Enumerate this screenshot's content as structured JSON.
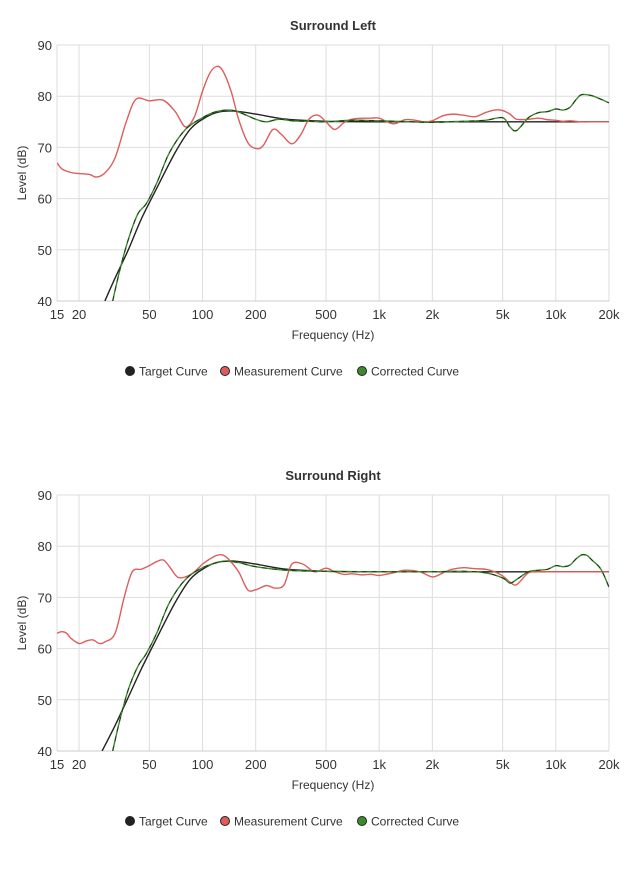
{
  "chart_data": [
    {
      "type": "line",
      "title": "Surround Left",
      "xlabel": "Frequency (Hz)",
      "ylabel": "Level (dB)",
      "xscale": "log",
      "xlim": [
        15,
        20000
      ],
      "ylim": [
        40,
        90
      ],
      "xticks": [
        15,
        20,
        50,
        100,
        200,
        500,
        1000,
        2000,
        5000,
        10000,
        20000
      ],
      "xtick_labels": [
        "15",
        "20",
        "50",
        "100",
        "200",
        "500",
        "1k",
        "2k",
        "5k",
        "10k",
        "20k"
      ],
      "yticks": [
        40,
        50,
        60,
        70,
        80,
        90
      ],
      "ytick_labels": [
        "40",
        "50",
        "60",
        "70",
        "80",
        "90"
      ],
      "grid": true,
      "legend_position": "bottom",
      "series": [
        {
          "name": "Target Curve",
          "color": "#222222",
          "dashed": false,
          "x": [
            28,
            32,
            38,
            45,
            55,
            70,
            85,
            100,
            120,
            150,
            200,
            300,
            500,
            1000,
            2000,
            5000,
            10000,
            20000
          ],
          "y": [
            40,
            44.5,
            50,
            56,
            62,
            69,
            73.5,
            75.5,
            76.8,
            77.1,
            76.5,
            75.5,
            75.1,
            75,
            75,
            75,
            75,
            75
          ]
        },
        {
          "name": "Measurement Curve",
          "color": "#e05c5c",
          "dashed": false,
          "x": [
            15,
            16,
            18,
            20,
            23,
            25,
            28,
            32,
            37,
            42,
            50,
            60,
            70,
            80,
            90,
            100,
            110,
            120,
            130,
            145,
            160,
            180,
            200,
            220,
            250,
            280,
            320,
            360,
            400,
            450,
            500,
            560,
            630,
            700,
            800,
            900,
            1000,
            1200,
            1400,
            1600,
            1800,
            2000,
            2300,
            2600,
            3000,
            3500,
            4000,
            4500,
            5000,
            5500,
            6000,
            7000,
            8000,
            9000,
            10000,
            11000,
            12000,
            14000,
            16000,
            18000,
            20000
          ],
          "y": [
            67,
            65.8,
            65.1,
            64.9,
            64.7,
            64.2,
            65,
            68,
            75,
            79.4,
            79.1,
            79.2,
            77,
            74,
            76,
            81,
            84.5,
            85.8,
            85,
            81,
            75.5,
            71,
            69.8,
            70.3,
            73.5,
            72.5,
            70.7,
            72.5,
            75.5,
            76.3,
            75,
            73.5,
            74.8,
            75.5,
            75.7,
            75.7,
            75.7,
            74.6,
            75.4,
            75.3,
            75,
            75.2,
            76.2,
            76.5,
            76.3,
            76,
            76.8,
            77.3,
            77.2,
            76.5,
            75.5,
            75.5,
            75.7,
            75.4,
            75.3,
            75.1,
            75.2,
            75,
            75,
            75,
            75
          ]
        },
        {
          "name": "Corrected Curve",
          "color": "#3d8a2e",
          "dashed": true,
          "x": [
            31,
            34,
            38,
            43,
            48,
            55,
            65,
            80,
            100,
            120,
            150,
            200,
            230,
            270,
            320,
            400,
            500,
            700,
            1000,
            1500,
            2000,
            3000,
            4000,
            5000,
            5500,
            6000,
            7000,
            8000,
            9000,
            10000,
            11000,
            12000,
            13000,
            14000,
            16000,
            18000,
            20000
          ],
          "y": [
            40,
            46,
            52,
            57,
            59,
            63,
            69,
            73.5,
            75.8,
            77,
            77.2,
            75.5,
            75,
            75.5,
            75.2,
            75.1,
            75,
            75.3,
            75.2,
            75,
            74.9,
            75.1,
            75.3,
            75.8,
            74,
            73.3,
            75.8,
            76.8,
            77,
            77.5,
            77.3,
            77.8,
            79.3,
            80.3,
            80.1,
            79.4,
            78.7
          ]
        }
      ]
    },
    {
      "type": "line",
      "title": "Surround Right",
      "xlabel": "Frequency (Hz)",
      "ylabel": "Level (dB)",
      "xscale": "log",
      "xlim": [
        15,
        20000
      ],
      "ylim": [
        40,
        90
      ],
      "xticks": [
        15,
        20,
        50,
        100,
        200,
        500,
        1000,
        2000,
        5000,
        10000,
        20000
      ],
      "xtick_labels": [
        "15",
        "20",
        "50",
        "100",
        "200",
        "500",
        "1k",
        "2k",
        "5k",
        "10k",
        "20k"
      ],
      "yticks": [
        40,
        50,
        60,
        70,
        80,
        90
      ],
      "ytick_labels": [
        "40",
        "50",
        "60",
        "70",
        "80",
        "90"
      ],
      "grid": true,
      "legend_position": "bottom",
      "series": [
        {
          "name": "Target Curve",
          "color": "#222222",
          "dashed": false,
          "x": [
            27,
            32,
            38,
            45,
            55,
            70,
            85,
            100,
            120,
            150,
            200,
            300,
            500,
            1000,
            2000,
            5000,
            10000,
            20000
          ],
          "y": [
            40,
            45,
            50.5,
            56,
            62,
            69,
            73.5,
            75.5,
            76.8,
            77.1,
            76.5,
            75.5,
            75.1,
            75,
            75,
            75,
            75,
            75
          ]
        },
        {
          "name": "Measurement Curve",
          "color": "#e05c5c",
          "dashed": false,
          "x": [
            15,
            16,
            17,
            18,
            20,
            22,
            24,
            26,
            28,
            32,
            36,
            40,
            45,
            50,
            55,
            60,
            65,
            72,
            80,
            90,
            100,
            110,
            120,
            130,
            140,
            160,
            180,
            200,
            230,
            260,
            290,
            320,
            370,
            430,
            500,
            560,
            630,
            700,
            800,
            900,
            1000,
            1200,
            1400,
            1700,
            2000,
            2300,
            2600,
            3000,
            3500,
            4000,
            4500,
            5000,
            5500,
            6000,
            7000,
            8000,
            9000,
            10000,
            11000,
            12000,
            14000,
            16000,
            18000,
            20000
          ],
          "y": [
            63,
            63.3,
            63,
            62,
            61,
            61.5,
            61.7,
            61,
            61.3,
            63,
            70,
            75,
            75.5,
            76.2,
            77,
            77.3,
            76,
            74,
            74,
            75,
            76.5,
            77.5,
            78.2,
            78.3,
            77.5,
            75,
            71.5,
            71.5,
            72.3,
            71.8,
            72.5,
            76.5,
            76.5,
            75,
            75.7,
            75,
            74.5,
            74.6,
            74.4,
            74.5,
            74.3,
            74.8,
            75.3,
            75,
            74,
            74.8,
            75.5,
            75.8,
            75.6,
            75.5,
            75,
            74.2,
            73,
            72.5,
            74.8,
            75,
            75,
            75,
            75,
            75,
            75,
            75,
            75,
            75
          ]
        },
        {
          "name": "Corrected Curve",
          "color": "#3d8a2e",
          "dashed": true,
          "x": [
            31,
            34,
            38,
            43,
            48,
            55,
            65,
            80,
            100,
            130,
            160,
            200,
            300,
            500,
            1000,
            2000,
            3000,
            4000,
            5000,
            5500,
            6000,
            7000,
            8000,
            9000,
            10000,
            11000,
            12000,
            13000,
            14000,
            15000,
            16000,
            18000,
            20000
          ],
          "y": [
            40,
            46,
            52,
            56.5,
            59,
            63,
            69,
            73.5,
            75.8,
            77,
            76.8,
            76,
            75.3,
            75.1,
            75,
            75,
            75.1,
            74.8,
            73.8,
            72.8,
            73.5,
            75,
            75.3,
            75.5,
            76.2,
            76,
            76.3,
            77.5,
            78.3,
            78.2,
            77.3,
            75.5,
            72
          ]
        }
      ]
    }
  ]
}
